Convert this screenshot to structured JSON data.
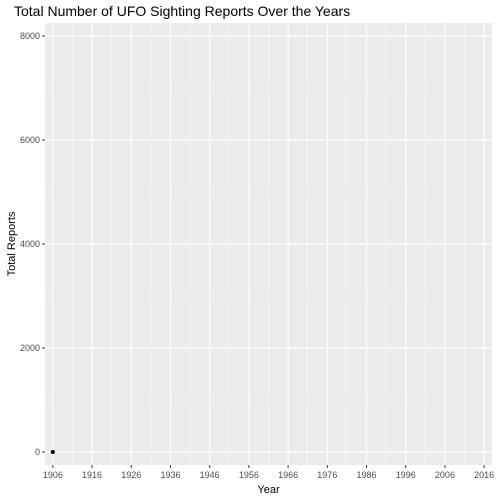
{
  "chart_data": {
    "type": "scatter",
    "title": "Total Number of UFO Sighting Reports Over the Years",
    "xlabel": "Year",
    "ylabel": "Total Reports",
    "xlim": [
      1904,
      2018
    ],
    "ylim": [
      -250,
      8250
    ],
    "x_ticks": [
      1906,
      1916,
      1926,
      1936,
      1946,
      1956,
      1966,
      1976,
      1986,
      1996,
      2006,
      2016
    ],
    "y_ticks": [
      0,
      2000,
      4000,
      6000,
      8000
    ],
    "grid": true,
    "legend": "none",
    "colors": {
      "panel": "#ebebeb",
      "grid": "#ffffff",
      "point": "#000000"
    },
    "points": [
      {
        "x": 1906,
        "y": 1
      }
    ]
  }
}
